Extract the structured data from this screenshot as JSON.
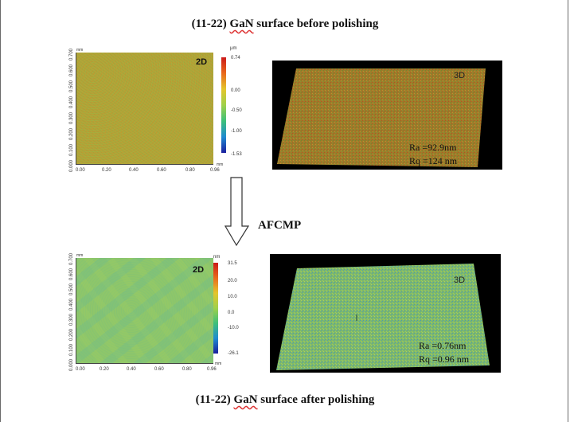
{
  "titles": {
    "top_prefix": "(11-22) ",
    "top_gan": "GaN",
    "top_suffix": " surface before polishing",
    "bottom_prefix": "(11-22) ",
    "bottom_gan": "GaN",
    "bottom_suffix": " surface after polishing"
  },
  "process_label": "AFCMP",
  "before": {
    "map2d": {
      "label": "2D",
      "unit_axis": "mm",
      "y_ticks": [
        "0.000",
        "0.100",
        "0.200",
        "0.300",
        "0.400",
        "0.500",
        "0.600",
        "0.700"
      ],
      "x_ticks": [
        "0.00",
        "0.20",
        "0.40",
        "0.60",
        "0.80",
        "0.96"
      ],
      "colorbar_unit": "μm",
      "colorbar_ticks": [
        "0.74",
        "0.00",
        "-0.50",
        "-1.00",
        "-1.53"
      ],
      "surface_color": "#b4a238"
    },
    "map3d": {
      "label": "3D",
      "ra": "Ra =92.9nm",
      "rq": "Rq =124 nm",
      "surface_color": "#9e7a2a"
    }
  },
  "after": {
    "map2d": {
      "label": "2D",
      "unit_axis": "mm",
      "y_ticks": [
        "0.000",
        "0.100",
        "0.200",
        "0.300",
        "0.400",
        "0.500",
        "0.600",
        "0.700"
      ],
      "x_ticks": [
        "0.00",
        "0.20",
        "0.40",
        "0.60",
        "0.80",
        "0.96"
      ],
      "colorbar_unit": "nm",
      "colorbar_ticks": [
        "31.5",
        "20.0",
        "10.0",
        "0.0",
        "-10.0",
        "-26.1"
      ],
      "surface_color": "#8ec66a"
    },
    "map3d": {
      "label": "3D",
      "ra": "Ra =0.76nm",
      "rq": "Rq =0.96 nm",
      "surface_color": "#7fb86a"
    }
  }
}
